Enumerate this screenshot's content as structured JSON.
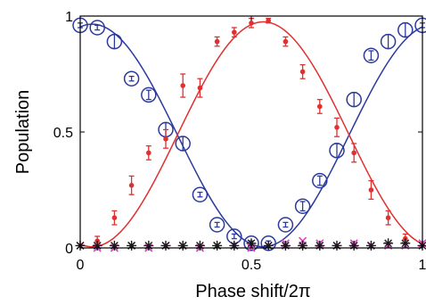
{
  "chart_data": {
    "type": "scatter",
    "xlabel": "Phase shift/2π",
    "ylabel": "Population",
    "xlim": [
      0,
      1
    ],
    "ylim": [
      0,
      1
    ],
    "x_ticks": [
      "0",
      "0.5",
      "1"
    ],
    "x_tick_values": [
      0,
      0.5,
      1
    ],
    "y_ticks": [
      "0",
      "0.5",
      "1"
    ],
    "y_tick_values": [
      0,
      0.5,
      1
    ],
    "grid": false,
    "legend": "none",
    "series": [
      {
        "marker": "open-circle",
        "color": "#2b3a9c",
        "fit_curve": true,
        "x": [
          0.0,
          0.05,
          0.1,
          0.15,
          0.2,
          0.25,
          0.3,
          0.35,
          0.4,
          0.45,
          0.5,
          0.55,
          0.6,
          0.65,
          0.7,
          0.75,
          0.8,
          0.85,
          0.9,
          0.95,
          1.0
        ],
        "y": [
          0.96,
          0.95,
          0.89,
          0.73,
          0.66,
          0.51,
          0.45,
          0.23,
          0.1,
          0.05,
          0.02,
          0.02,
          0.1,
          0.18,
          0.29,
          0.42,
          0.64,
          0.83,
          0.89,
          0.94,
          0.96
        ],
        "err": [
          0.01,
          0.01,
          0.03,
          0.01,
          0.02,
          0.03,
          0.03,
          0.01,
          0.01,
          0.01,
          0.01,
          0.01,
          0.01,
          0.02,
          0.02,
          0.03,
          0.03,
          0.02,
          0.03,
          0.03,
          0.01
        ]
      },
      {
        "marker": "dot",
        "color": "#e03030",
        "fit_curve": true,
        "x": [
          0.05,
          0.1,
          0.15,
          0.2,
          0.25,
          0.3,
          0.35,
          0.4,
          0.45,
          0.5,
          0.55,
          0.6,
          0.65,
          0.7,
          0.75,
          0.8,
          0.85,
          0.9,
          0.95
        ],
        "y": [
          0.03,
          0.13,
          0.27,
          0.41,
          0.47,
          0.7,
          0.69,
          0.89,
          0.93,
          0.97,
          0.98,
          0.89,
          0.76,
          0.61,
          0.52,
          0.41,
          0.25,
          0.13,
          0.04
        ],
        "err": [
          0.02,
          0.03,
          0.04,
          0.03,
          0.04,
          0.05,
          0.04,
          0.02,
          0.02,
          0.02,
          0.01,
          0.02,
          0.03,
          0.03,
          0.04,
          0.04,
          0.04,
          0.03,
          0.02
        ]
      },
      {
        "marker": "x",
        "color": "#e040c0",
        "x": [
          0.0,
          0.05,
          0.1,
          0.15,
          0.2,
          0.25,
          0.3,
          0.35,
          0.4,
          0.45,
          0.5,
          0.55,
          0.6,
          0.65,
          0.7,
          0.75,
          0.8,
          0.85,
          0.9,
          0.95,
          1.0
        ],
        "y": [
          0.01,
          0.0,
          0.0,
          0.01,
          0.0,
          0.01,
          0.01,
          0.0,
          0.01,
          0.01,
          0.0,
          0.01,
          0.02,
          0.03,
          0.02,
          0.01,
          0.02,
          0.01,
          0.01,
          0.01,
          0.02
        ]
      },
      {
        "marker": "asterisk",
        "color": "#1a1a1a",
        "x": [
          0.0,
          0.05,
          0.1,
          0.15,
          0.2,
          0.25,
          0.3,
          0.35,
          0.4,
          0.45,
          0.5,
          0.55,
          0.6,
          0.65,
          0.7,
          0.75,
          0.8,
          0.85,
          0.9,
          0.95,
          1.0
        ],
        "y": [
          0.01,
          0.01,
          0.01,
          0.01,
          0.01,
          0.01,
          0.01,
          0.01,
          0.01,
          0.01,
          0.02,
          0.01,
          0.01,
          0.01,
          0.01,
          0.01,
          0.01,
          0.01,
          0.02,
          0.02,
          0.01
        ]
      }
    ]
  }
}
